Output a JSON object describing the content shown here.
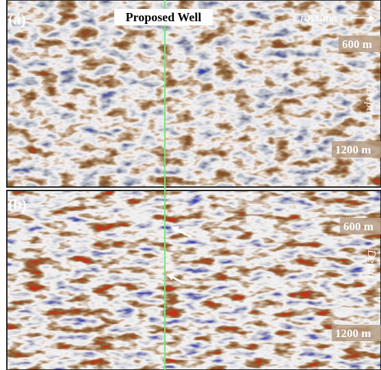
{
  "well_label": "Proposed Well",
  "crossline_label": "Crossline",
  "panels": [
    {
      "label": "(a)",
      "depth_labels": [
        "600 m",
        "1200 m"
      ],
      "axis_label": "Depth"
    },
    {
      "label": "(b)",
      "depth_labels": [
        "600 m",
        "1200 m"
      ],
      "axis_label": "Depth"
    }
  ]
}
